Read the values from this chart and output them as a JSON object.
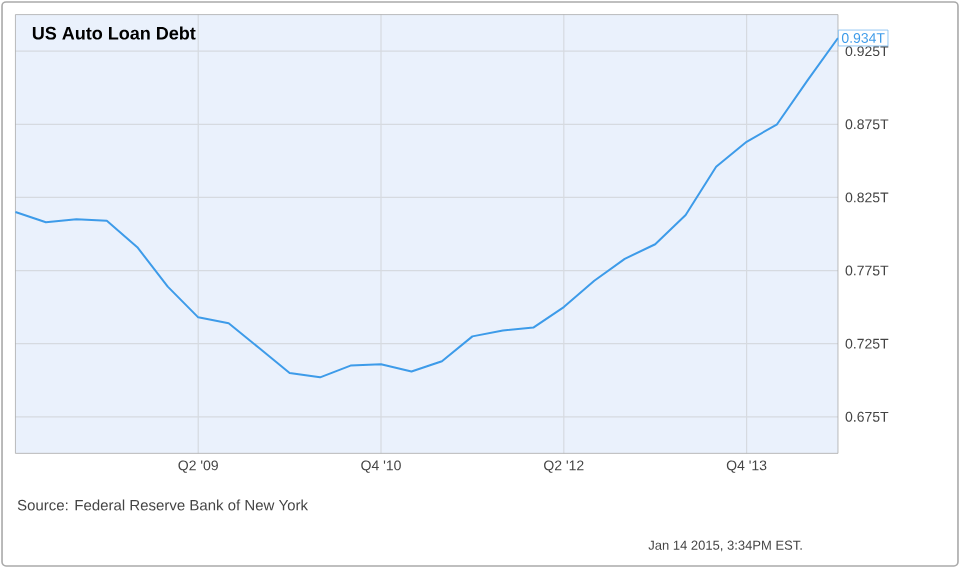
{
  "chart_data": {
    "type": "line",
    "title": "US Auto Loan Debt",
    "categories": [
      null,
      null,
      null,
      null,
      null,
      null,
      "Q2 '09",
      null,
      null,
      null,
      null,
      null,
      "Q4 '10",
      null,
      null,
      null,
      null,
      null,
      "Q2 '12",
      null,
      null,
      null,
      null,
      null,
      "Q4 '13",
      null,
      null,
      null
    ],
    "series": [
      {
        "color": "#3d9be9",
        "values": [
          0.815,
          0.808,
          0.81,
          0.809,
          0.791,
          0.764,
          0.743,
          0.739,
          0.722,
          0.705,
          0.702,
          0.71,
          0.711,
          0.706,
          0.713,
          0.73,
          0.734,
          0.736,
          0.75,
          0.768,
          0.783,
          0.793,
          0.813,
          0.846,
          0.863,
          0.875,
          0.905,
          0.934
        ]
      }
    ],
    "ylim": [
      0.65,
      0.95
    ],
    "yticks": [
      {
        "value": 0.675,
        "label": "0.675T"
      },
      {
        "value": 0.725,
        "label": "0.725T"
      },
      {
        "value": 0.775,
        "label": "0.775T"
      },
      {
        "value": 0.825,
        "label": "0.825T"
      },
      {
        "value": 0.875,
        "label": "0.875T"
      },
      {
        "value": 0.925,
        "label": "0.925T"
      }
    ],
    "grid": true,
    "annotations": [
      {
        "text": "0.934T",
        "y": 0.934
      },
      "Source: Federal Reserve Bank of New York",
      "Jan 14 2015, 3:34PM EST."
    ]
  }
}
